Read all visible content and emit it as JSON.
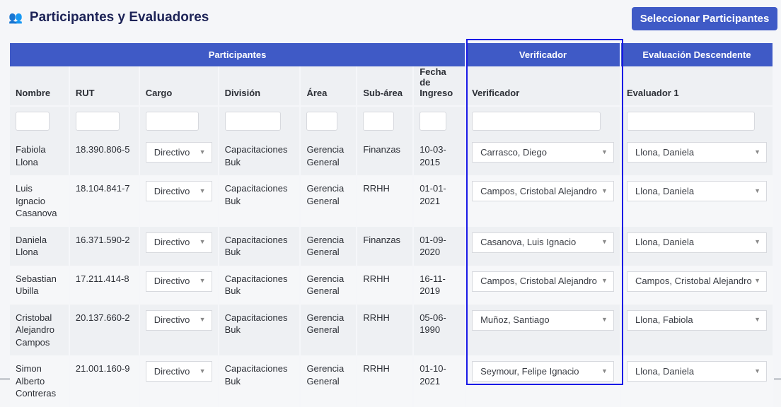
{
  "header": {
    "title": "Participantes y Evaluadores",
    "icon": "users-icon",
    "button": "Seleccionar Participantes"
  },
  "groups": {
    "participantes": "Participantes",
    "verificador": "Verificador",
    "evaluacion": "Evaluación Descendente"
  },
  "columns": [
    "Nombre",
    "RUT",
    "Cargo",
    "División",
    "Área",
    "Sub-área",
    "Fecha de Ingreso",
    "Verificador",
    "Evaluador 1"
  ],
  "rows": [
    {
      "nombre": "Fabiola Llona",
      "rut": "18.390.806-5",
      "cargo": "Directivo",
      "division": "Capacitaciones Buk",
      "area": "Gerencia General",
      "subarea": "Finanzas",
      "fecha": "10-03-2015",
      "verificador": "Carrasco, Diego",
      "evaluador": "Llona, Daniela"
    },
    {
      "nombre": "Luis Ignacio Casanova",
      "rut": "18.104.841-7",
      "cargo": "Directivo",
      "division": "Capacitaciones Buk",
      "area": "Gerencia General",
      "subarea": "RRHH",
      "fecha": "01-01-2021",
      "verificador": "Campos, Cristobal Alejandro",
      "evaluador": "Llona, Daniela"
    },
    {
      "nombre": "Daniela Llona",
      "rut": "16.371.590-2",
      "cargo": "Directivo",
      "division": "Capacitaciones Buk",
      "area": "Gerencia General",
      "subarea": "Finanzas",
      "fecha": "01-09-2020",
      "verificador": "Casanova, Luis Ignacio",
      "evaluador": "Llona, Daniela"
    },
    {
      "nombre": "Sebastian Ubilla",
      "rut": "17.211.414-8",
      "cargo": "Directivo",
      "division": "Capacitaciones Buk",
      "area": "Gerencia General",
      "subarea": "RRHH",
      "fecha": "16-11-2019",
      "verificador": "Campos, Cristobal Alejandro",
      "evaluador": "Campos, Cristobal Alejandro"
    },
    {
      "nombre": "Cristobal Alejandro Campos",
      "rut": "20.137.660-2",
      "cargo": "Directivo",
      "division": "Capacitaciones Buk",
      "area": "Gerencia General",
      "subarea": "RRHH",
      "fecha": "05-06-1990",
      "verificador": "Muñoz, Santiago",
      "evaluador": "Llona, Fabiola"
    },
    {
      "nombre": "Simon Alberto Contreras",
      "rut": "21.001.160-9",
      "cargo": "Directivo",
      "division": "Capacitaciones Buk",
      "area": "Gerencia General",
      "subarea": "RRHH",
      "fecha": "01-10-2021",
      "verificador": "Seymour, Felipe Ignacio",
      "evaluador": "Llona, Daniela"
    }
  ]
}
